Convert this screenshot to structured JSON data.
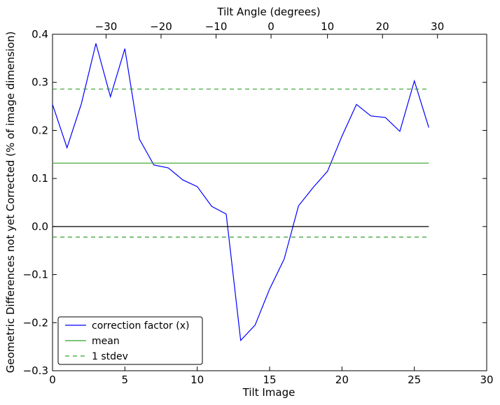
{
  "chart_data": {
    "type": "line",
    "xlabel": "Tilt Image",
    "ylabel": "Geometric Differences not yet Corrected (% of image dimension)",
    "top_xlabel": "Tilt Angle (degrees)",
    "xlim": [
      0,
      30
    ],
    "ylim": [
      -0.3,
      0.4
    ],
    "xticks": [
      0,
      5,
      10,
      15,
      20,
      25,
      30
    ],
    "yticks": [
      -0.3,
      -0.2,
      -0.1,
      0.0,
      0.1,
      0.2,
      0.3,
      0.4
    ],
    "xtick_labels": [
      "0",
      "5",
      "10",
      "15",
      "20",
      "25",
      "30"
    ],
    "ytick_labels": [
      "−0.3",
      "−0.2",
      "−0.1",
      "0.0",
      "0.1",
      "0.2",
      "0.3",
      "0.4"
    ],
    "top_ticks": [
      {
        "label": "−30",
        "at": 3.7
      },
      {
        "label": "−20",
        "at": 7.5
      },
      {
        "label": "−10",
        "at": 11.3
      },
      {
        "label": "0",
        "at": 15.1
      },
      {
        "label": "10",
        "at": 19.0
      },
      {
        "label": "20",
        "at": 22.8
      },
      {
        "label": "30",
        "at": 26.6
      }
    ],
    "series": [
      {
        "name": "correction factor (x)",
        "color": "#0000ff",
        "style": "solid",
        "x": [
          0,
          1,
          2,
          3,
          4,
          5,
          6,
          7,
          8,
          9,
          10,
          11,
          12,
          13,
          14,
          15,
          16,
          17,
          18,
          19,
          20,
          21,
          22,
          23,
          24,
          25,
          26
        ],
        "y": [
          0.254,
          0.164,
          0.256,
          0.381,
          0.27,
          0.37,
          0.182,
          0.128,
          0.122,
          0.097,
          0.083,
          0.042,
          0.026,
          -0.237,
          -0.205,
          -0.13,
          -0.068,
          0.043,
          0.081,
          0.115,
          0.188,
          0.254,
          0.23,
          0.227,
          0.198,
          0.303,
          0.206
        ]
      },
      {
        "name": "mean",
        "color": "#33a02c",
        "style": "solid",
        "x": [
          0,
          26
        ],
        "y": [
          0.132,
          0.132
        ]
      },
      {
        "name": "1 stdev",
        "color": "#33a02c",
        "style": "dashed",
        "x": [
          0,
          26
        ],
        "y": [
          0.286,
          0.286
        ]
      },
      {
        "name": "",
        "color": "#33a02c",
        "style": "dashed",
        "x": [
          0,
          26
        ],
        "y": [
          -0.022,
          -0.022
        ]
      },
      {
        "name": "",
        "color": "#000000",
        "style": "solid",
        "x": [
          0,
          26
        ],
        "y": [
          0.0,
          0.0
        ]
      }
    ],
    "legend": {
      "placement": "lower-left",
      "entries": [
        {
          "label": "correction factor (x)",
          "color": "#0000ff",
          "style": "solid"
        },
        {
          "label": "mean",
          "color": "#33a02c",
          "style": "solid"
        },
        {
          "label": "1 stdev",
          "color": "#33a02c",
          "style": "dashed"
        }
      ]
    },
    "grid": false
  }
}
